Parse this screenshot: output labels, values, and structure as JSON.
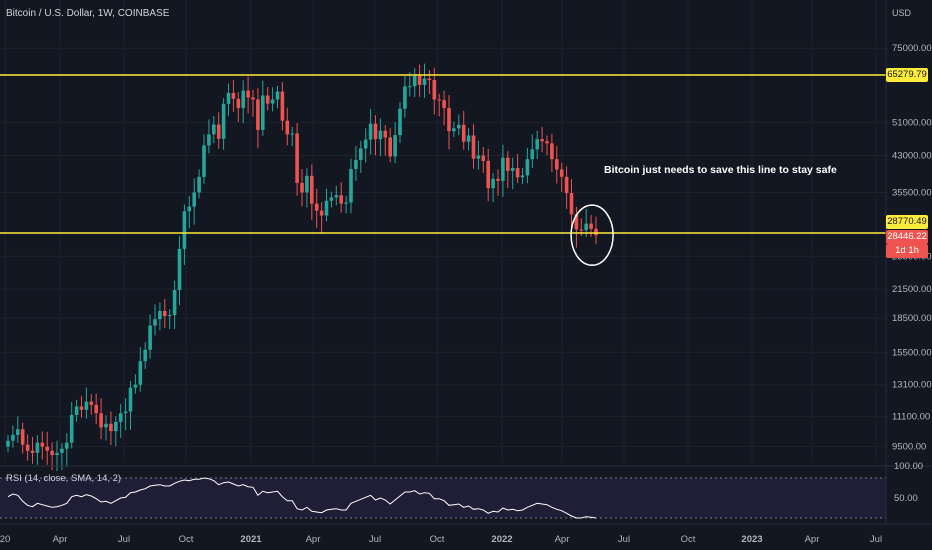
{
  "header": {
    "title": "Bitcoin / U.S. Dollar, 1W, COINBASE",
    "currency": "USD"
  },
  "annotation": {
    "text": "Bitcoin just needs to save this line to stay safe"
  },
  "price_labels": {
    "resistance": "65279.79",
    "support": "28770.49",
    "current": "28446.22",
    "countdown": "1d 1h"
  },
  "rsi": {
    "title": "RSI (14, close, SMA, 14, 2)"
  },
  "colors": {
    "background": "#131722",
    "up": "#26a69a",
    "down": "#ef5350",
    "level_line": "#ffeb3b",
    "rsi_band": "#2a2246",
    "grid": "#1e222d"
  },
  "chart_data": {
    "type": "candlestick",
    "title": "Bitcoin / U.S. Dollar, 1W, COINBASE",
    "scale": "log",
    "ylim": [
      8500,
      95000
    ],
    "y_ticks": [
      75000,
      65279.79,
      51000,
      43000,
      35500,
      28770.49,
      25500,
      21500,
      18500,
      15500,
      13100,
      11100,
      9500
    ],
    "y_tick_labels": [
      "75000.00",
      "65279.79",
      "51000.00",
      "43000.00",
      "35500.00",
      "28770.49",
      "25500.00",
      "21500.00",
      "18500.00",
      "15500.00",
      "13100.00",
      "11100.00",
      "9500.00"
    ],
    "x_tick_labels": [
      "20",
      "Apr",
      "Jul",
      "Oct",
      "2021",
      "Apr",
      "Jul",
      "Oct",
      "2022",
      "Apr",
      "Jul",
      "Oct",
      "2023",
      "Apr",
      "Jul"
    ],
    "horizontal_levels": [
      65279.79,
      28770.49
    ],
    "close_series": [
      9800,
      10100,
      10400,
      9600,
      9300,
      9200,
      9700,
      9500,
      9300,
      9100,
      9200,
      9400,
      9700,
      11200,
      11700,
      11500,
      12000,
      11800,
      11300,
      10500,
      10700,
      10300,
      10800,
      11300,
      11400,
      12900,
      13100,
      14800,
      15700,
      17800,
      18400,
      19200,
      18700,
      18800,
      21400,
      26500,
      32200,
      33000,
      35500,
      38500,
      45300,
      48000,
      50500,
      46900,
      56200,
      59500,
      57700,
      55000,
      60200,
      58100,
      57500,
      49100,
      58700,
      56300,
      57500,
      59900,
      51500,
      48000,
      48200,
      37300,
      35500,
      38700,
      33500,
      32300,
      31500,
      34000,
      34600,
      35000,
      33500,
      33700,
      40100,
      42000,
      44600,
      46700,
      50700,
      46800,
      48900,
      47200,
      42800,
      47800,
      54800,
      61500,
      61600,
      65000,
      62000,
      64100,
      63600,
      57500,
      57300,
      55000,
      48800,
      49500,
      50400,
      46200,
      47700,
      42300,
      43000,
      41800,
      36300,
      38100,
      37700,
      42500,
      39700,
      40300,
      38400,
      38800,
      42200,
      44400,
      46800,
      46300,
      45800,
      42200,
      40000,
      38500,
      35400,
      31700,
      29300,
      29200,
      30200,
      29400,
      28446.22
    ],
    "rsi_values": [
      62,
      66,
      64,
      55,
      49,
      47,
      52,
      50,
      48,
      46,
      47,
      49,
      52,
      62,
      64,
      62,
      65,
      63,
      59,
      54,
      55,
      52,
      56,
      60,
      61,
      68,
      69,
      72,
      74,
      78,
      79,
      80,
      78,
      78,
      82,
      85,
      87,
      86,
      88,
      88,
      90,
      89,
      86,
      80,
      83,
      84,
      81,
      78,
      80,
      77,
      76,
      64,
      70,
      68,
      69,
      70,
      62,
      56,
      56,
      44,
      42,
      46,
      40,
      39,
      38,
      42,
      43,
      44,
      42,
      42,
      52,
      55,
      58,
      61,
      64,
      57,
      60,
      57,
      51,
      57,
      63,
      69,
      69,
      71,
      66,
      68,
      67,
      59,
      59,
      56,
      49,
      50,
      51,
      46,
      48,
      43,
      44,
      42,
      37,
      40,
      39,
      45,
      42,
      43,
      41,
      42,
      46,
      49,
      52,
      51,
      50,
      46,
      43,
      41,
      37,
      33,
      30,
      30,
      32,
      31,
      30
    ],
    "rsi_ylim": [
      0,
      100
    ],
    "rsi_ticks": [
      "100.00",
      "50.00"
    ]
  }
}
